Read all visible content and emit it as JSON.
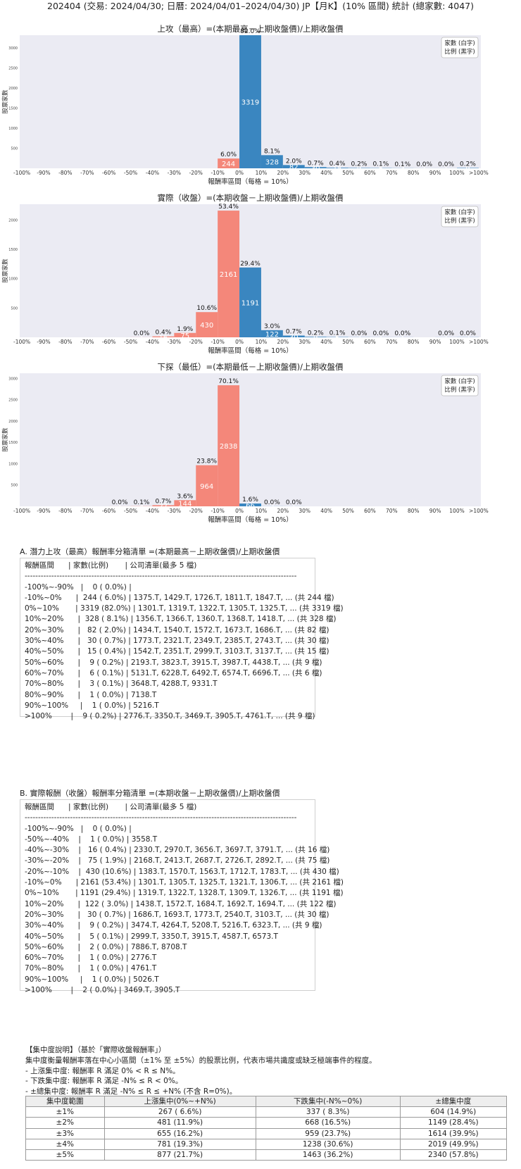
{
  "page_title": "202404 (交易: 2024/04/30; 日曆: 2024/04/01–2024/04/30) JP【月K】(10% 區間) 統計 (總家數: 4047)",
  "chart_data": [
    {
      "type": "bar",
      "title": "上攻（最高）=(本期最高－上期收盤價)/上期收盤價",
      "xlabel": "報酬率區間（每格 = 10%）",
      "ylabel": "股票家數",
      "legend": [
        "家數 (白字)",
        "比例 (黑字)"
      ],
      "legend_position": "top-right",
      "ylim": [
        0,
        3319
      ],
      "yticks": [
        500,
        1000,
        1500,
        2000,
        2500,
        3000
      ],
      "xtick_labels": [
        "-100%",
        "-90%",
        "-80%",
        "-70%",
        "-60%",
        "-50%",
        "-40%",
        "-30%",
        "-20%",
        "-10%",
        "0%",
        "10%",
        "20%",
        "30%",
        "40%",
        "50%",
        "60%",
        "70%",
        "80%",
        "90%",
        "100%",
        ">100%"
      ],
      "bins": [
        {
          "bin": 9,
          "count": 244,
          "pct": "6.0%"
        },
        {
          "bin": 10,
          "count": 3319,
          "pct": "82.0%"
        },
        {
          "bin": 11,
          "count": 328,
          "pct": "8.1%"
        },
        {
          "bin": 12,
          "count": 82,
          "pct": "2.0%"
        },
        {
          "bin": 13,
          "count": 30,
          "pct": "0.7%"
        },
        {
          "bin": 14,
          "count": 15,
          "pct": "0.4%"
        },
        {
          "bin": 15,
          "count": 9,
          "pct": "0.2%"
        },
        {
          "bin": 16,
          "count": 6,
          "pct": "0.1%"
        },
        {
          "bin": 17,
          "count": 3,
          "pct": "0.1%"
        },
        {
          "bin": 18,
          "count": 1,
          "pct": "0.0%"
        },
        {
          "bin": 19,
          "count": 1,
          "pct": "0.0%"
        },
        {
          "bin": 20,
          "count": 9,
          "pct": "0.2%"
        }
      ]
    },
    {
      "type": "bar",
      "title": "實際（收盤）=(本期收盤－上期收盤價)/上期收盤價",
      "xlabel": "報酬率區間（每格 = 10%）",
      "ylabel": "股票家數",
      "legend": [
        "家數 (白字)",
        "比例 (黑字)"
      ],
      "legend_position": "top-right",
      "ylim": [
        0,
        2270
      ],
      "yticks": [
        500,
        1000,
        1500,
        2000
      ],
      "xtick_labels": [
        "-100%",
        "-90%",
        "-80%",
        "-70%",
        "-60%",
        "-50%",
        "-40%",
        "-30%",
        "-20%",
        "-10%",
        "0%",
        "10%",
        "20%",
        "30%",
        "40%",
        "50%",
        "60%",
        "70%",
        "80%",
        "90%",
        "100%",
        ">100%"
      ],
      "bins": [
        {
          "bin": 5,
          "count": 1,
          "pct": "0.0%"
        },
        {
          "bin": 6,
          "count": 16,
          "pct": "0.4%"
        },
        {
          "bin": 7,
          "count": 75,
          "pct": "1.9%"
        },
        {
          "bin": 8,
          "count": 430,
          "pct": "10.6%"
        },
        {
          "bin": 9,
          "count": 2161,
          "pct": "53.4%"
        },
        {
          "bin": 10,
          "count": 1191,
          "pct": "29.4%"
        },
        {
          "bin": 11,
          "count": 122,
          "pct": "3.0%"
        },
        {
          "bin": 12,
          "count": 30,
          "pct": "0.7%"
        },
        {
          "bin": 13,
          "count": 9,
          "pct": "0.2%"
        },
        {
          "bin": 14,
          "count": 5,
          "pct": "0.1%"
        },
        {
          "bin": 15,
          "count": 2,
          "pct": "0.0%"
        },
        {
          "bin": 16,
          "count": 1,
          "pct": "0.0%"
        },
        {
          "bin": 17,
          "count": 1,
          "pct": "0.0%"
        },
        {
          "bin": 19,
          "count": 1,
          "pct": "0.0%"
        },
        {
          "bin": 20,
          "count": 2,
          "pct": "0.0%"
        }
      ]
    },
    {
      "type": "bar",
      "title": "下探（最低）=(本期最低－上期收盤價)/上期收盤價",
      "xlabel": "報酬率區間（每格 = 10%）",
      "ylabel": "股票家數",
      "legend": [
        "家數 (白字)",
        "比例 (黑字)"
      ],
      "legend_position": "top-right",
      "ylim": [
        0,
        3120
      ],
      "yticks": [
        500,
        1000,
        1500,
        2000,
        2500,
        3000
      ],
      "xtick_labels": [
        "-100%",
        "-90%",
        "-80%",
        "-70%",
        "-60%",
        "-50%",
        "-40%",
        "-30%",
        "-20%",
        "-10%",
        "0%",
        "10%",
        "20%",
        "30%",
        "40%",
        "50%",
        "60%",
        "70%",
        "80%",
        "90%",
        "100%",
        ">100%"
      ],
      "bins": [
        {
          "bin": 4,
          "count": 1,
          "pct": "0.0%"
        },
        {
          "bin": 5,
          "count": 4,
          "pct": "0.1%"
        },
        {
          "bin": 6,
          "count": 27,
          "pct": "0.7%"
        },
        {
          "bin": 7,
          "count": 144,
          "pct": "3.6%"
        },
        {
          "bin": 8,
          "count": 964,
          "pct": "23.8%"
        },
        {
          "bin": 9,
          "count": 2838,
          "pct": "70.1%"
        },
        {
          "bin": 10,
          "count": 66,
          "pct": "1.6%"
        },
        {
          "bin": 11,
          "count": 2,
          "pct": "0.0%"
        },
        {
          "bin": 12,
          "count": 1,
          "pct": "0.0%"
        }
      ]
    }
  ],
  "table_a": {
    "title": "A. 潛力上攻（最高）報酬率分箱清單 =(本期最高－上期收盤價)/上期收盤價",
    "lines": [
      "報酬區間      | 家數(比例)       | 公司清單(最多 5 檔)",
      "------------------------------------------------------------------------------------------------------",
      "-100%~-90%   |    0 ( 0.0%) |",
      "-10%~0%      |  244 ( 6.0%) | 1375.T, 1429.T, 1726.T, 1811.T, 1847.T, ... (共 244 檔)",
      "0%~10%       | 3319 (82.0%) | 1301.T, 1319.T, 1322.T, 1305.T, 1325.T, ... (共 3319 檔)",
      "10%~20%      |  328 ( 8.1%) | 1356.T, 1366.T, 1360.T, 1368.T, 1418.T, ... (共 328 檔)",
      "20%~30%      |   82 ( 2.0%) | 1434.T, 1540.T, 1572.T, 1673.T, 1686.T, ... (共 82 檔)",
      "30%~40%      |   30 ( 0.7%) | 1773.T, 2321.T, 2349.T, 2385.T, 2743.T, ... (共 30 檔)",
      "40%~50%      |   15 ( 0.4%) | 1542.T, 2351.T, 2999.T, 3103.T, 3137.T, ... (共 15 檔)",
      "50%~60%      |    9 ( 0.2%) | 2193.T, 3823.T, 3915.T, 3987.T, 4438.T, ... (共 9 檔)",
      "60%~70%      |    6 ( 0.1%) | 5131.T, 6228.T, 6492.T, 6574.T, 6696.T, ... (共 6 檔)",
      "70%~80%      |    3 ( 0.1%) | 3648.T, 4288.T, 9331.T",
      "80%~90%      |    1 ( 0.0%) | 7138.T",
      "90%~100%     |    1 ( 0.0%) | 5216.T",
      ">100%        |    9 ( 0.2%) | 2776.T, 3350.T, 3469.T, 3905.T, 4761.T, ... (共 9 檔)"
    ]
  },
  "table_b": {
    "title": "B. 實際報酬（收盤）報酬率分箱清單 =(本期收盤－上期收盤價)/上期收盤價",
    "lines": [
      "報酬區間      | 家數(比例)       | 公司清單(最多 5 檔)",
      "------------------------------------------------------------------------------------------------------",
      "-100%~-90%   |    0 ( 0.0%) |",
      "-50%~-40%    |    1 ( 0.0%) | 3558.T",
      "-40%~-30%    |   16 ( 0.4%) | 2330.T, 2970.T, 3656.T, 3697.T, 3791.T, ... (共 16 檔)",
      "-30%~-20%    |   75 ( 1.9%) | 2168.T, 2413.T, 2687.T, 2726.T, 2892.T, ... (共 75 檔)",
      "-20%~-10%    |  430 (10.6%) | 1383.T, 1570.T, 1563.T, 1712.T, 1783.T, ... (共 430 檔)",
      "-10%~0%      | 2161 (53.4%) | 1301.T, 1305.T, 1325.T, 1321.T, 1306.T, ... (共 2161 檔)",
      "0%~10%       | 1191 (29.4%) | 1319.T, 1322.T, 1328.T, 1309.T, 1326.T, ... (共 1191 檔)",
      "10%~20%      |  122 ( 3.0%) | 1438.T, 1572.T, 1684.T, 1692.T, 1694.T, ... (共 122 檔)",
      "20%~30%      |   30 ( 0.7%) | 1686.T, 1693.T, 1773.T, 2540.T, 3103.T, ... (共 30 檔)",
      "30%~40%      |    9 ( 0.2%) | 3474.T, 4264.T, 5208.T, 5216.T, 6323.T, ... (共 9 檔)",
      "40%~50%      |    5 ( 0.1%) | 2999.T, 3350.T, 3915.T, 4587.T, 6573.T",
      "50%~60%      |    2 ( 0.0%) | 7886.T, 8708.T",
      "60%~70%      |    1 ( 0.0%) | 2776.T",
      "70%~80%      |    1 ( 0.0%) | 4761.T",
      "90%~100%     |    1 ( 0.0%) | 5026.T",
      ">100%        |    2 ( 0.0%) | 3469.T, 3905.T"
    ]
  },
  "concentration": {
    "heading": "【集中度說明】（基於「實際收盤報酬率」）",
    "lines": [
      "集中度衡量報酬率落在中心小區間（±1% 至 ±5%）的股票比例，代表市場共識度或缺乏極端事件的程度。",
      " - 上漲集中度: 報酬率 R 滿足 0% < R ≤ N%。",
      " - 下跌集中度: 報酬率 R 滿足 -N% ≤ R < 0%。",
      " - ±總集中度: 報酬率 R 滿足 -N% ≤ R ≤ +N% (不含 R=0%)。"
    ],
    "headers": [
      "集中度範圍",
      "上漲集中(0%~+N%)",
      "下跌集中(-N%~0%)",
      "±總集中度"
    ],
    "rows": [
      [
        "±1%",
        "267 ( 6.6%)",
        "337 ( 8.3%)",
        "604 (14.9%)"
      ],
      [
        "±2%",
        "481 (11.9%)",
        "668 (16.5%)",
        "1149 (28.4%)"
      ],
      [
        "±3%",
        "655 (16.2%)",
        "959 (23.7%)",
        "1614 (39.9%)"
      ],
      [
        "±4%",
        "781 (19.3%)",
        "1238 (30.6%)",
        "2019 (49.9%)"
      ],
      [
        "±5%",
        "877 (21.7%)",
        "1463 (36.2%)",
        "2340 (57.8%)"
      ]
    ]
  },
  "colors": {
    "positive_bar": "#3a86c0",
    "negative_bar": "#f4877a",
    "plot_background": "#ebebf3"
  }
}
